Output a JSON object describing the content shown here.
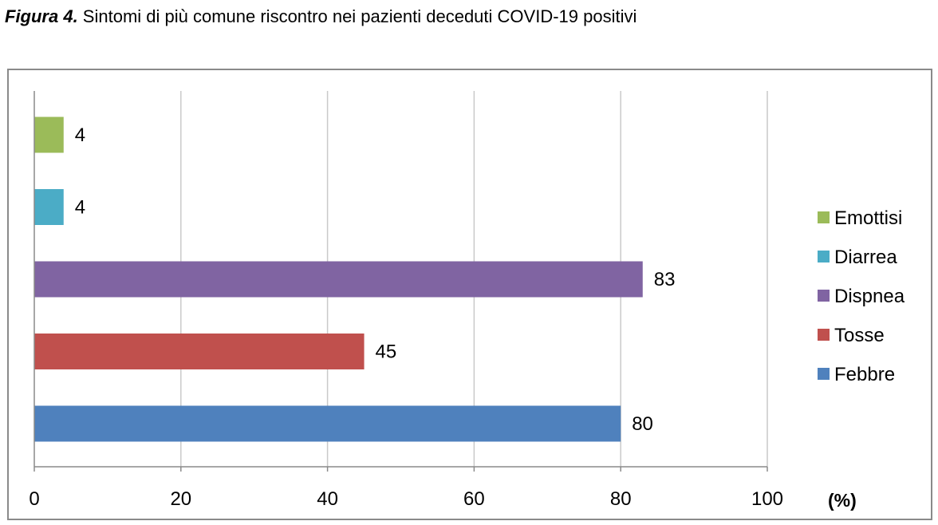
{
  "caption": {
    "figure_label": "Figura 4.",
    "text": " Sintomi di più comune riscontro nei pazienti deceduti COVID-19 positivi"
  },
  "chart_data": {
    "type": "bar",
    "orientation": "horizontal",
    "categories": [
      "Emottisi",
      "Diarrea",
      "Dispnea",
      "Tosse",
      "Febbre"
    ],
    "values": [
      4,
      4,
      83,
      45,
      80
    ],
    "colors": [
      "#9BBB59",
      "#4BACC6",
      "#8064A2",
      "#C0504D",
      "#4F81BD"
    ],
    "xlim": [
      0,
      100
    ],
    "x_ticks": [
      0,
      20,
      40,
      60,
      80,
      100
    ],
    "x_unit_label": "(%)",
    "grid": true,
    "legend_position": "right",
    "legend_entries": [
      "Emottisi",
      "Diarrea",
      "Dispnea",
      "Tosse",
      "Febbre"
    ]
  }
}
